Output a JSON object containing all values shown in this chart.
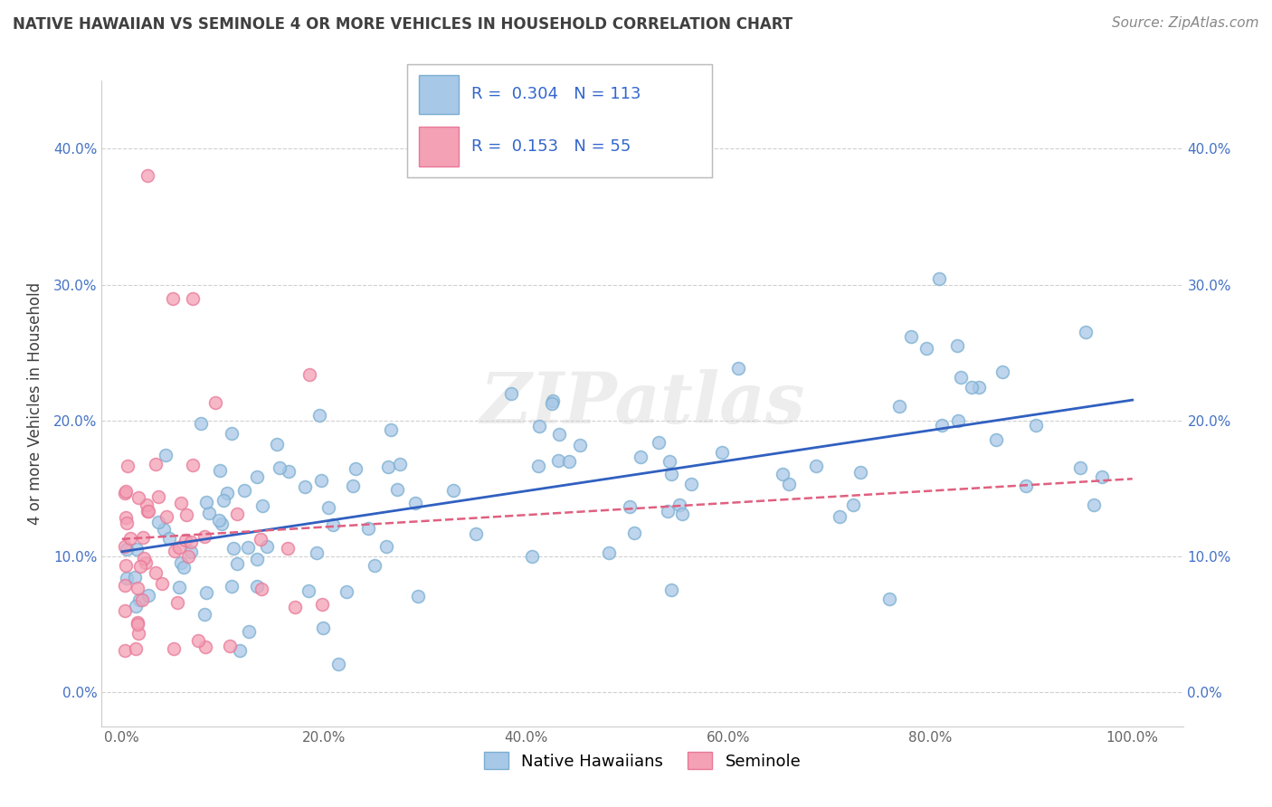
{
  "title": "NATIVE HAWAIIAN VS SEMINOLE 4 OR MORE VEHICLES IN HOUSEHOLD CORRELATION CHART",
  "source": "Source: ZipAtlas.com",
  "ylabel": "4 or more Vehicles in Household",
  "xlim": [
    -0.02,
    1.05
  ],
  "ylim": [
    -0.025,
    0.45
  ],
  "xticks": [
    0.0,
    0.2,
    0.4,
    0.6,
    0.8,
    1.0
  ],
  "xticklabels": [
    "0.0%",
    "20.0%",
    "40.0%",
    "60.0%",
    "80.0%",
    "100.0%"
  ],
  "yticks": [
    0.0,
    0.1,
    0.2,
    0.3,
    0.4
  ],
  "yticklabels": [
    "0.0%",
    "10.0%",
    "20.0%",
    "30.0%",
    "40.0%"
  ],
  "blue_R": "0.304",
  "blue_N": "113",
  "pink_R": "0.153",
  "pink_N": "55",
  "blue_color": "#a8c8e8",
  "pink_color": "#f4a0b5",
  "blue_edge_color": "#7aaed0",
  "pink_edge_color": "#e87898",
  "blue_line_color": "#3060c0",
  "pink_line_color": "#e06080",
  "pink_line_style": "--",
  "grid_color": "#d0d0d0",
  "title_color": "#404040",
  "watermark": "ZIPatlas",
  "legend_label_blue": "Native Hawaiians",
  "legend_label_pink": "Seminole",
  "title_fontsize": 12,
  "source_fontsize": 11,
  "tick_fontsize": 11,
  "ylabel_fontsize": 12
}
